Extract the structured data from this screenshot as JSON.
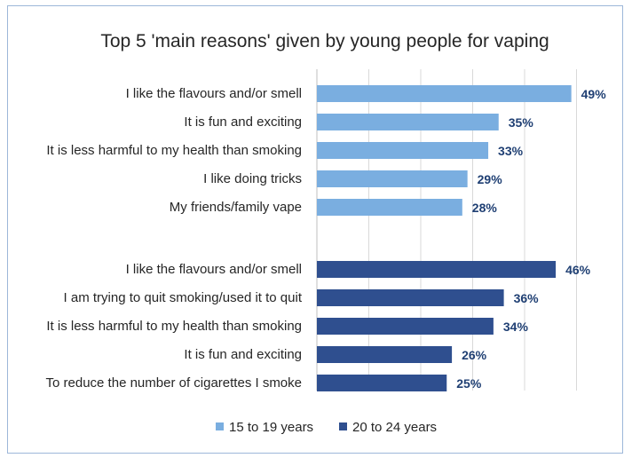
{
  "chart_data": {
    "type": "bar",
    "orientation": "horizontal",
    "title": "Top 5 'main reasons' given by young people for vaping",
    "xlim": [
      0,
      50
    ],
    "grid": true,
    "legend_position": "bottom",
    "series": [
      {
        "name": "15 to 19 years",
        "color": "#7aaee0",
        "categories": [
          "I like the flavours and/or smell",
          "It is fun and exciting",
          "It is less harmful to my health than smoking",
          "I like doing tricks",
          "My friends/family vape"
        ],
        "values": [
          49,
          35,
          33,
          29,
          28
        ],
        "labels": [
          "49%",
          "35%",
          "33%",
          "29%",
          "28%"
        ]
      },
      {
        "name": "20 to 24 years",
        "color": "#2f4f8f",
        "categories": [
          "I like the flavours and/or smell",
          "I am trying to quit smoking/used it to quit",
          "It is less harmful to my health than smoking",
          "It is fun and exciting",
          "To reduce the number of cigarettes I smoke"
        ],
        "values": [
          46,
          36,
          34,
          26,
          25
        ],
        "labels": [
          "46%",
          "36%",
          "34%",
          "26%",
          "25%"
        ]
      }
    ]
  }
}
